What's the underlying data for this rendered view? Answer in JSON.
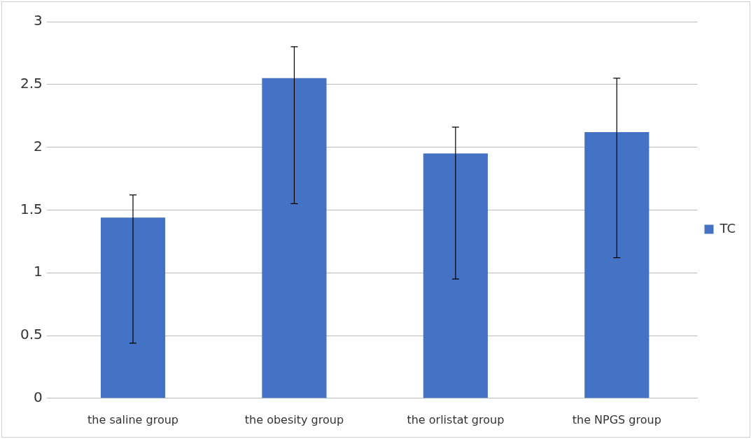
{
  "chart_data": {
    "type": "bar",
    "categories": [
      "the saline group",
      "the obesity group",
      "the orlistat group",
      "the NPGS group"
    ],
    "series": [
      {
        "name": "TC",
        "color": "#4472c4",
        "values": [
          1.44,
          2.55,
          1.95,
          2.12
        ],
        "errors": [
          [
            0.44,
            1.62
          ],
          [
            1.55,
            2.8
          ],
          [
            0.95,
            2.16
          ],
          [
            1.12,
            2.55
          ]
        ]
      }
    ],
    "ylim": [
      0,
      3
    ],
    "yticks": [
      0,
      0.5,
      1,
      1.5,
      2,
      2.5,
      3
    ],
    "grid": "y",
    "legend": "right"
  }
}
